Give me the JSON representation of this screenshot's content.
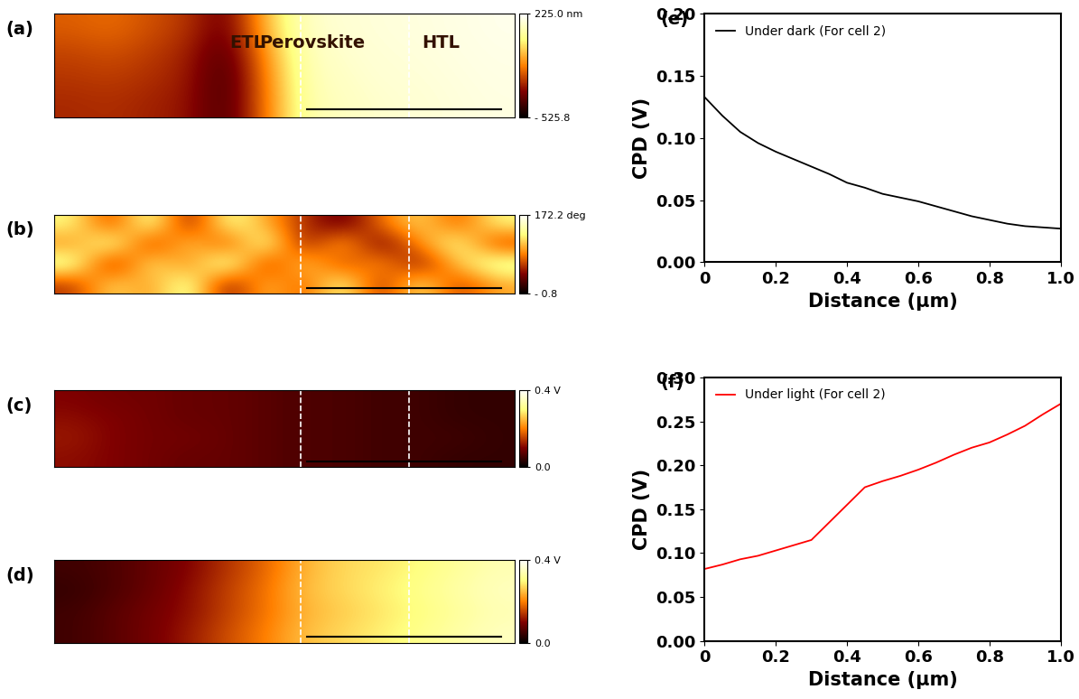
{
  "chart_data": [
    {
      "type": "heatmap",
      "title": "(a)",
      "tick_labels": false,
      "annotations": [
        "ETL",
        "Perovskite",
        "HTL"
      ],
      "cells": [
        [
          -200,
          -180,
          -220,
          -260,
          -380,
          -60,
          140,
          160,
          170,
          175,
          185,
          195
        ],
        [
          -240,
          -220,
          -250,
          -290,
          -420,
          -120,
          120,
          150,
          165,
          170,
          180,
          190
        ],
        [
          -260,
          -250,
          -270,
          -300,
          -440,
          -150,
          110,
          140,
          160,
          165,
          175,
          185
        ],
        [
          -280,
          -270,
          -290,
          -310,
          -430,
          -160,
          100,
          130,
          150,
          160,
          170,
          180
        ]
      ],
      "colorbar": {
        "range": [
          -525.8,
          225.0
        ],
        "ticks": [
          {
            "value": -525.8,
            "label": "- 525.8"
          },
          {
            "value": 225.0,
            "label": "225.0 nm"
          }
        ]
      }
    },
    {
      "type": "heatmap",
      "title": "(b)",
      "tick_labels": false,
      "cells": [
        [
          130,
          60,
          150,
          40,
          140,
          100,
          60,
          30,
          80,
          120,
          70,
          130
        ],
        [
          90,
          150,
          50,
          120,
          60,
          150,
          40,
          110,
          30,
          90,
          140,
          60
        ],
        [
          150,
          40,
          130,
          80,
          160,
          50,
          120,
          60,
          100,
          40,
          110,
          150
        ],
        [
          60,
          120,
          90,
          150,
          40,
          110,
          70,
          140,
          50,
          130,
          60,
          100
        ]
      ],
      "colorbar": {
        "range": [
          -0.8,
          172.2
        ],
        "ticks": [
          {
            "value": -0.8,
            "label": "- 0.8"
          },
          {
            "value": 172.2,
            "label": "172.2 deg"
          }
        ]
      }
    },
    {
      "type": "heatmap",
      "title": "(c)",
      "tick_labels": false,
      "cells": [
        [
          0.1,
          0.09,
          0.09,
          0.08,
          0.08,
          0.07,
          0.06,
          0.06,
          0.05,
          0.05,
          0.04,
          0.04
        ],
        [
          0.11,
          0.1,
          0.09,
          0.08,
          0.08,
          0.07,
          0.06,
          0.06,
          0.05,
          0.05,
          0.04,
          0.04
        ],
        [
          0.12,
          0.1,
          0.09,
          0.09,
          0.08,
          0.07,
          0.06,
          0.06,
          0.05,
          0.05,
          0.05,
          0.04
        ],
        [
          0.11,
          0.1,
          0.09,
          0.08,
          0.08,
          0.07,
          0.06,
          0.06,
          0.05,
          0.05,
          0.04,
          0.04
        ]
      ],
      "colorbar": {
        "range": [
          0.0,
          0.4
        ],
        "ticks": [
          {
            "value": 0.0,
            "label": "0.0"
          },
          {
            "value": 0.4,
            "label": "0.4 V"
          }
        ]
      }
    },
    {
      "type": "heatmap",
      "title": "(d)",
      "tick_labels": false,
      "cells": [
        [
          0.05,
          0.06,
          0.08,
          0.1,
          0.14,
          0.18,
          0.24,
          0.27,
          0.28,
          0.3,
          0.32,
          0.34
        ],
        [
          0.04,
          0.06,
          0.08,
          0.11,
          0.15,
          0.19,
          0.25,
          0.27,
          0.29,
          0.31,
          0.33,
          0.35
        ],
        [
          0.05,
          0.07,
          0.09,
          0.11,
          0.15,
          0.19,
          0.24,
          0.26,
          0.28,
          0.3,
          0.32,
          0.34
        ],
        [
          0.05,
          0.07,
          0.09,
          0.12,
          0.16,
          0.2,
          0.25,
          0.27,
          0.29,
          0.31,
          0.33,
          0.35
        ]
      ],
      "colorbar": {
        "range": [
          0.0,
          0.4
        ],
        "ticks": [
          {
            "value": 0.0,
            "label": "0.0"
          },
          {
            "value": 0.4,
            "label": "0.4 V"
          }
        ]
      }
    },
    {
      "type": "line",
      "title": "(e)",
      "xlabel": "Distance (μm)",
      "ylabel": "CPD (V)",
      "legend": "upper left",
      "x": [
        0,
        0.05,
        0.1,
        0.15,
        0.2,
        0.25,
        0.3,
        0.35,
        0.4,
        0.45,
        0.5,
        0.55,
        0.6,
        0.65,
        0.7,
        0.75,
        0.8,
        0.85,
        0.9,
        0.95,
        1.0
      ],
      "series": [
        {
          "name": "Under dark (For cell 2)",
          "color": "#000000",
          "values": [
            0.133,
            0.118,
            0.105,
            0.096,
            0.089,
            0.083,
            0.077,
            0.071,
            0.064,
            0.06,
            0.055,
            0.052,
            0.049,
            0.045,
            0.041,
            0.037,
            0.034,
            0.031,
            0.029,
            0.028,
            0.027
          ]
        }
      ],
      "xlim": [
        0,
        1.0
      ],
      "xticks": [
        0,
        0.2,
        0.4,
        0.6,
        0.8,
        {
          "value": 1.0,
          "label": "1.0"
        }
      ],
      "ylim": [
        0,
        0.2
      ],
      "yticks": [
        {
          "value": 0,
          "label": "0.00"
        },
        {
          "value": 0.05,
          "label": "0.05"
        },
        {
          "value": 0.1,
          "label": "0.10"
        },
        {
          "value": 0.15,
          "label": "0.15"
        },
        {
          "value": 0.2,
          "label": "0.20"
        }
      ]
    },
    {
      "type": "line",
      "title": "(f)",
      "xlabel": "Distance (μm)",
      "ylabel": "CPD (V)",
      "legend": "upper left",
      "x": [
        0,
        0.05,
        0.1,
        0.15,
        0.2,
        0.25,
        0.3,
        0.35,
        0.4,
        0.45,
        0.5,
        0.55,
        0.6,
        0.65,
        0.7,
        0.75,
        0.8,
        0.85,
        0.9,
        0.95,
        1.0
      ],
      "series": [
        {
          "name": "Under light (For cell 2)",
          "color": "#ff0000",
          "values": [
            0.082,
            0.087,
            0.093,
            0.097,
            0.103,
            0.109,
            0.115,
            0.135,
            0.155,
            0.175,
            0.182,
            0.188,
            0.195,
            0.203,
            0.212,
            0.22,
            0.226,
            0.235,
            0.245,
            0.258,
            0.27
          ]
        }
      ],
      "xlim": [
        0,
        1.0
      ],
      "xticks": [
        0,
        0.2,
        0.4,
        0.6,
        0.8,
        {
          "value": 1.0,
          "label": "1.0"
        }
      ],
      "ylim": [
        0,
        0.3
      ],
      "yticks": [
        {
          "value": 0,
          "label": "0.00"
        },
        {
          "value": 0.05,
          "label": "0.05"
        },
        {
          "value": 0.1,
          "label": "0.10"
        },
        {
          "value": 0.15,
          "label": "0.15"
        },
        {
          "value": 0.2,
          "label": "0.20"
        },
        {
          "value": 0.25,
          "label": "0.25"
        },
        {
          "value": 0.3,
          "label": "0.30"
        }
      ]
    }
  ]
}
